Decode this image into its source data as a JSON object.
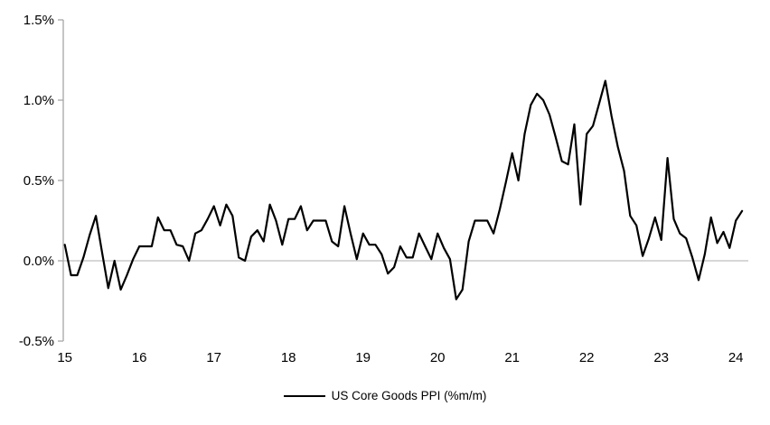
{
  "chart_data": {
    "type": "line",
    "title": "",
    "legend_label": "US Core Goods PPI (%m/m)",
    "legend_position": "bottom-center",
    "x_start": "2015-01",
    "x_end": "2024-02",
    "x_frequency": "monthly",
    "x_tick_labels": [
      "15",
      "16",
      "17",
      "18",
      "19",
      "20",
      "21",
      "22",
      "23",
      "24"
    ],
    "y_tick_labels": [
      "1.5%",
      "1.0%",
      "0.5%",
      "0.0%",
      "-0.5%"
    ],
    "y_tick_values": [
      1.5,
      1.0,
      0.5,
      0.0,
      -0.5
    ],
    "ylim": [
      -0.5,
      1.5
    ],
    "grid": "zero-line-only",
    "series": [
      {
        "name": "US Core Goods PPI (%m/m)",
        "color": "#000000",
        "values": [
          0.1,
          -0.09,
          -0.09,
          0.02,
          0.16,
          0.28,
          0.05,
          -0.17,
          0.0,
          -0.18,
          -0.09,
          0.01,
          0.09,
          0.09,
          0.09,
          0.27,
          0.19,
          0.19,
          0.1,
          0.09,
          0.0,
          0.17,
          0.19,
          0.26,
          0.34,
          0.22,
          0.35,
          0.28,
          0.02,
          0.0,
          0.15,
          0.19,
          0.12,
          0.35,
          0.25,
          0.1,
          0.26,
          0.26,
          0.34,
          0.19,
          0.25,
          0.25,
          0.25,
          0.12,
          0.09,
          0.34,
          0.17,
          0.01,
          0.17,
          0.1,
          0.1,
          0.04,
          -0.08,
          -0.04,
          0.09,
          0.02,
          0.02,
          0.17,
          0.09,
          0.01,
          0.17,
          0.08,
          0.01,
          -0.24,
          -0.18,
          0.12,
          0.25,
          0.25,
          0.25,
          0.17,
          0.32,
          0.49,
          0.67,
          0.5,
          0.79,
          0.97,
          1.04,
          1.0,
          0.91,
          0.77,
          0.62,
          0.6,
          0.85,
          0.35,
          0.79,
          0.84,
          0.98,
          1.12,
          0.9,
          0.71,
          0.56,
          0.28,
          0.22,
          0.03,
          0.14,
          0.27,
          0.13,
          0.64,
          0.26,
          0.17,
          0.14,
          0.02,
          -0.12,
          0.04,
          0.27,
          0.11,
          0.18,
          0.08,
          0.25,
          0.31
        ]
      }
    ]
  },
  "colors": {
    "line": "#000000",
    "axis": "#a6a6a6",
    "gridline": "#bfbfbf",
    "text": "#000000",
    "background": "#ffffff"
  }
}
